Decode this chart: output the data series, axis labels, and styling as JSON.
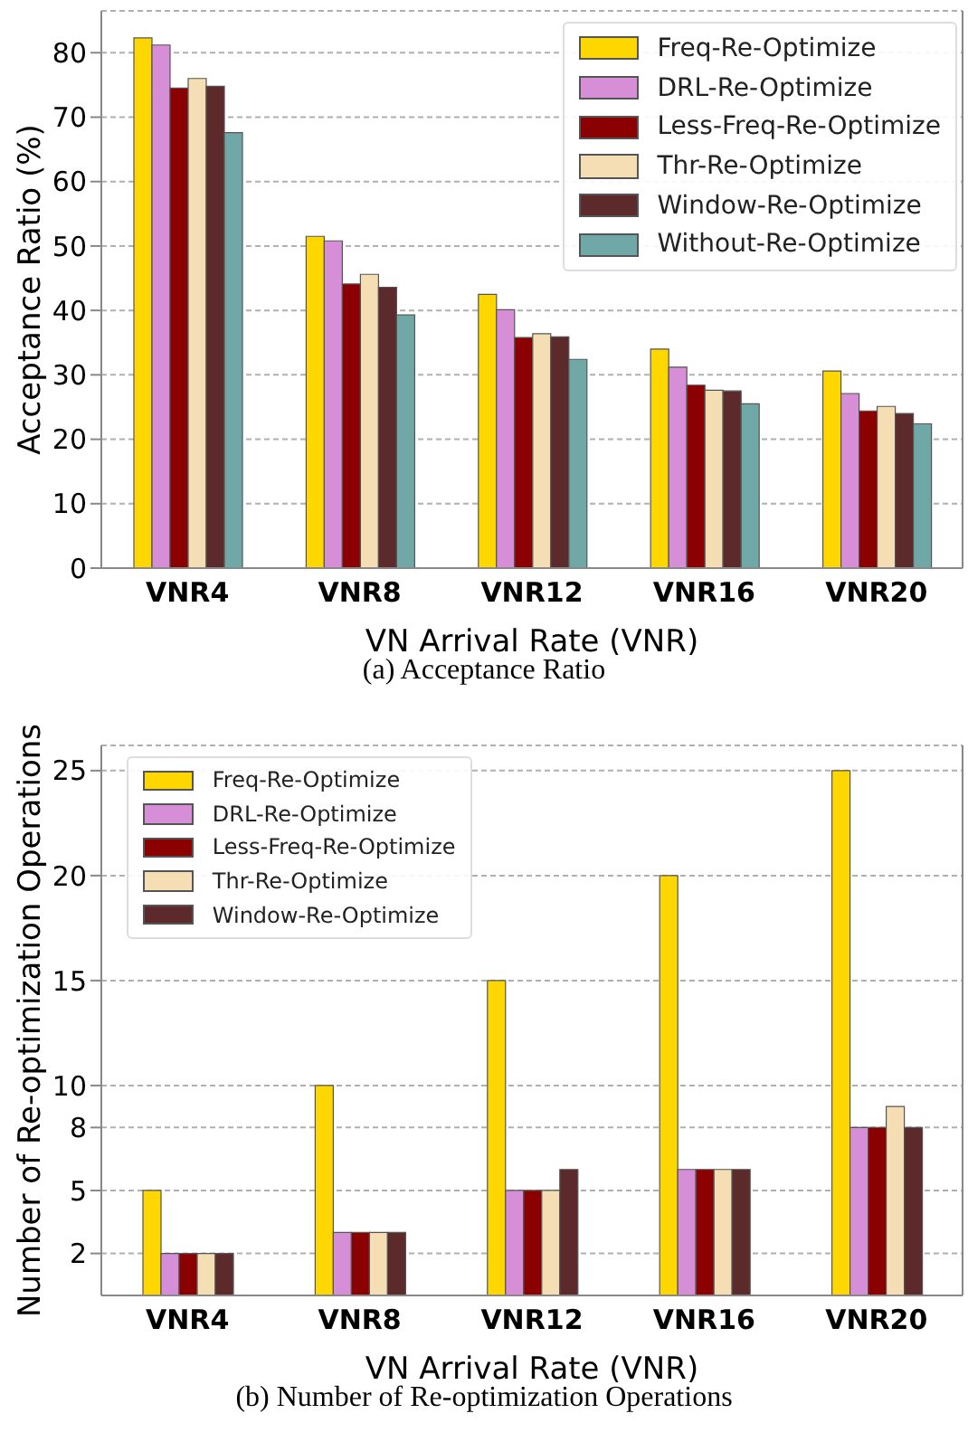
{
  "chart_data": [
    {
      "type": "bar",
      "xlabel": "VN Arrival Rate (VNR)",
      "ylabel": "Acceptance Ratio (%)",
      "categories": [
        "VNR4",
        "VNR8",
        "VNR12",
        "VNR16",
        "VNR20"
      ],
      "series": [
        {
          "name": "Freq-Re-Optimize",
          "color": "#ffd700",
          "values": [
            82.3,
            51.5,
            42.5,
            34.0,
            30.6
          ]
        },
        {
          "name": "DRL-Re-Optimize",
          "color": "#d68fd6",
          "values": [
            81.2,
            50.8,
            40.1,
            31.2,
            27.1
          ]
        },
        {
          "name": "Less-Freq-Re-Optimize",
          "color": "#8b0000",
          "values": [
            74.5,
            44.1,
            35.8,
            28.4,
            24.4
          ]
        },
        {
          "name": "Thr-Re-Optimize",
          "color": "#f5deb3",
          "values": [
            76.0,
            45.6,
            36.4,
            27.6,
            25.1
          ]
        },
        {
          "name": "Window-Re-Optimize",
          "color": "#5c2a2a",
          "values": [
            74.8,
            43.6,
            35.9,
            27.5,
            24.0
          ]
        },
        {
          "name": "Without-Re-Optimize",
          "color": "#6fa8a6",
          "values": [
            67.6,
            39.3,
            32.4,
            25.5,
            22.4
          ]
        }
      ],
      "ylim": [
        0,
        86.5
      ],
      "yticks": [
        0,
        10,
        20,
        30,
        40,
        50,
        60,
        70,
        80
      ],
      "grid": "y",
      "legend": "top right",
      "annotations": [
        "(a) Acceptance Ratio"
      ]
    },
    {
      "type": "bar",
      "xlabel": "VN Arrival Rate (VNR)",
      "ylabel": "Number of Re-optimization Operations",
      "categories": [
        "VNR4",
        "VNR8",
        "VNR12",
        "VNR16",
        "VNR20"
      ],
      "series": [
        {
          "name": "Freq-Re-Optimize",
          "color": "#ffd700",
          "values": [
            5,
            10,
            15,
            20,
            25
          ]
        },
        {
          "name": "DRL-Re-Optimize",
          "color": "#d68fd6",
          "values": [
            2,
            3,
            5,
            6,
            8
          ]
        },
        {
          "name": "Less-Freq-Re-Optimize",
          "color": "#8b0000",
          "values": [
            2,
            3,
            5,
            6,
            8
          ]
        },
        {
          "name": "Thr-Re-Optimize",
          "color": "#f5deb3",
          "values": [
            2,
            3,
            5,
            6,
            9
          ]
        },
        {
          "name": "Window-Re-Optimize",
          "color": "#5c2a2a",
          "values": [
            2,
            3,
            6,
            6,
            8
          ]
        }
      ],
      "ylim": [
        0,
        26.2
      ],
      "yticks": [
        2,
        5,
        8,
        10,
        15,
        20,
        25
      ],
      "grid": "y",
      "legend": "top left",
      "annotations": [
        "(b) Number of Re-optimization Operations"
      ]
    }
  ]
}
